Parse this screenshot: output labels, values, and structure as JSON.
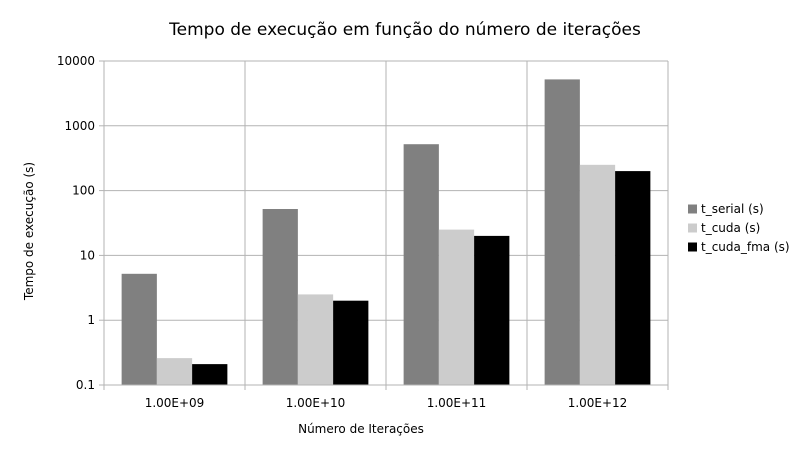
{
  "chart_data": {
    "type": "bar",
    "title": "Tempo de execução em função do número de iterações",
    "xlabel": "Número de Iterações",
    "ylabel": "Tempo de execução (s)",
    "yscale": "log",
    "ylim": [
      0.1,
      10000
    ],
    "yticks": [
      "0.1",
      "1",
      "10",
      "100",
      "1000",
      "10000"
    ],
    "grid": true,
    "legend_position": "right",
    "categories": [
      "1.00E+09",
      "1.00E+10",
      "1.00E+11",
      "1.00E+12"
    ],
    "series": [
      {
        "name": "t_serial (s)",
        "color": "#808080",
        "values": [
          5.2,
          52,
          520,
          5200
        ]
      },
      {
        "name": "t_cuda (s)",
        "color": "#cccccc",
        "values": [
          0.26,
          2.5,
          25,
          250
        ]
      },
      {
        "name": "t_cuda_fma (s)",
        "color": "#000000",
        "values": [
          0.21,
          2.0,
          20,
          200
        ]
      }
    ]
  }
}
